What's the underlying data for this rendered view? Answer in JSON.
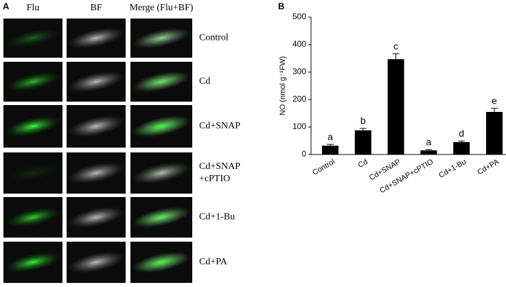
{
  "panel_a": {
    "label": "A",
    "columns": [
      "Flu",
      "BF",
      "Merge (Flu+BF)"
    ],
    "rows": [
      "Control",
      "Cd",
      "Cd+SNAP",
      "Cd+SNAP\n+cPTIO",
      "Cd+1-Bu",
      "Cd+PA"
    ]
  },
  "chart_data": {
    "type": "bar",
    "panel_label": "B",
    "ylabel": "NO (nmol g⁻¹FW)",
    "categories": [
      "Control",
      "Cd",
      "Cd+SNAP",
      "Cd+SNAP+cPTIO",
      "Cd+1-Bu",
      "Cd+PA"
    ],
    "values": [
      32,
      88,
      347,
      15,
      45,
      155
    ],
    "errors": [
      5,
      7,
      20,
      3,
      4,
      13
    ],
    "annotations": [
      "a",
      "b",
      "c",
      "a",
      "d",
      "e"
    ],
    "color": "#000000",
    "ylim": [
      0,
      500
    ],
    "yticks": [
      0,
      100,
      200,
      300,
      400,
      500
    ]
  }
}
